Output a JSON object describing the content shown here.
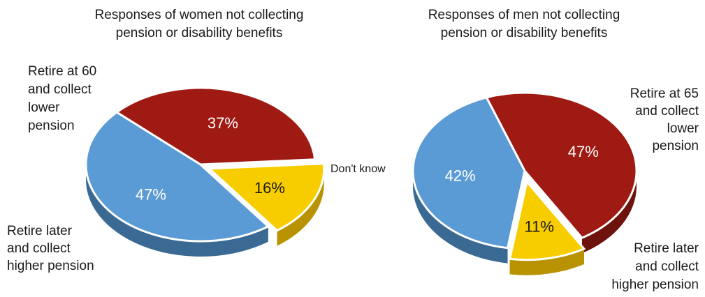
{
  "chart_data": [
    {
      "type": "pie",
      "title_lines": [
        "Responses of women not collecting",
        "pension or disability benefits"
      ],
      "slices": [
        {
          "label_lines": [
            "Retire at 60",
            "and collect",
            "lower",
            "pension"
          ],
          "value": 37,
          "value_label": "37%",
          "color": "#9e1a12"
        },
        {
          "label_lines": [],
          "value": 16,
          "value_label": "16%",
          "color": "#f8cd00"
        },
        {
          "label_lines": [
            "Retire later",
            "and collect",
            "higher pension"
          ],
          "value": 47,
          "value_label": "47%",
          "color": "#5b9bd5"
        }
      ]
    },
    {
      "type": "pie",
      "title_lines": [
        "Responses of men not collecting",
        "pension or disability benefits"
      ],
      "slices": [
        {
          "label_lines": [
            "Retire at 65",
            "and collect",
            "lower",
            "pension"
          ],
          "value": 47,
          "value_label": "47%",
          "color": "#9e1a12"
        },
        {
          "label_lines": [
            "Don't know"
          ],
          "value": 11,
          "value_label": "11%",
          "color": "#f8cd00"
        },
        {
          "label_lines": [
            "Retire later",
            "and collect",
            "higher pension"
          ],
          "value": 42,
          "value_label": "42%",
          "color": "#5b9bd5"
        }
      ]
    }
  ],
  "colors": {
    "side_blue": "#3a6a93",
    "side_yellow": "#b89200",
    "side_red": "#6e120c",
    "pct_text_dark": "#1a1a1a",
    "pct_text_light": "#ffffff"
  }
}
